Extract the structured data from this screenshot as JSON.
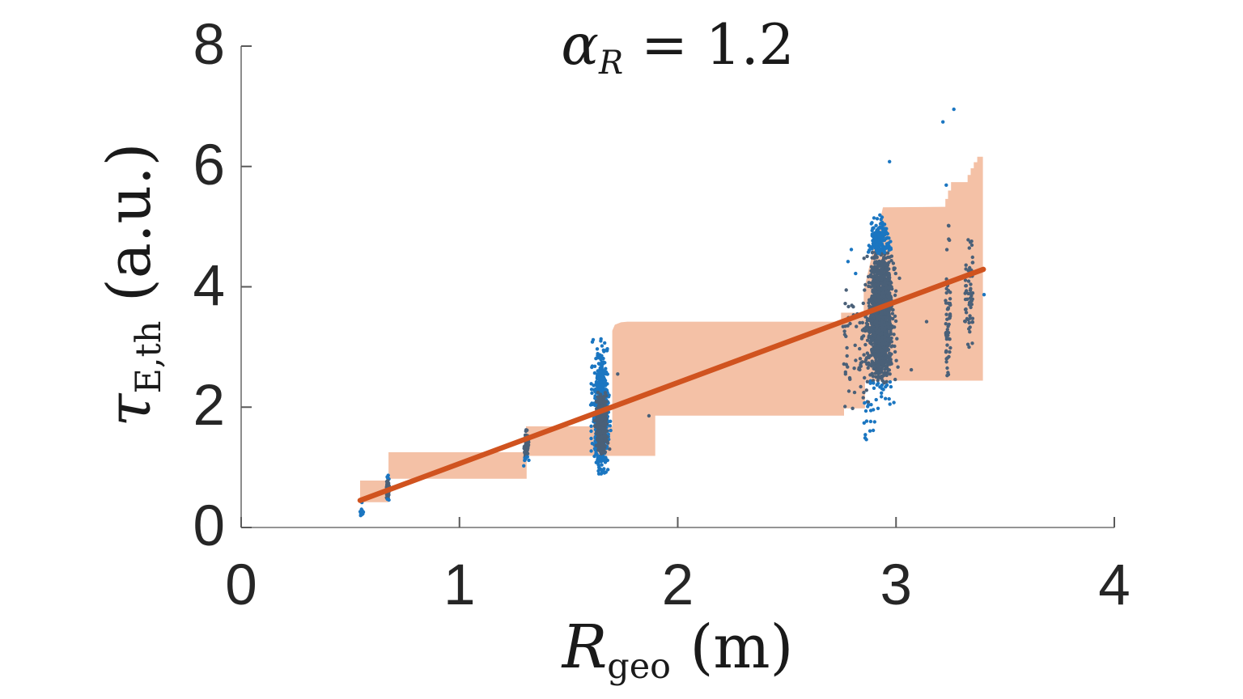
{
  "title": {
    "symbol": "α",
    "subscript": "R",
    "rest": " = 1.2"
  },
  "xlabel": {
    "symbol": "R",
    "subscript": "geo",
    "rest": " (m)"
  },
  "ylabel": {
    "symbol": "τ",
    "subscript": "E,th",
    "rest": " (a.u.)"
  },
  "axes": {
    "xticks": [
      "0",
      "1",
      "2",
      "3",
      "4"
    ],
    "yticks": [
      "0",
      "2",
      "4",
      "6",
      "8"
    ],
    "xlim": [
      0,
      4
    ],
    "ylim": [
      0,
      8
    ]
  },
  "palette": {
    "background": "#ffffff",
    "band": "#f4c1a6",
    "line": "#d0531f",
    "dot_bright": "#1b76c1",
    "dot_slate": "#4a6078",
    "axis_line": "#707070",
    "tick": "#5a5a5a",
    "text": "#262626"
  },
  "chart_data": {
    "type": "scatter",
    "title": "alpha_R = 1.2",
    "xlabel": "R_geo (m)",
    "ylabel": "tau_E,th (a.u.)",
    "xlim": [
      0,
      4
    ],
    "ylim": [
      0,
      8
    ],
    "grid": false,
    "legend": "none",
    "band": {
      "description": "salmon min-max step envelope",
      "upper": [
        [
          0.545,
          0.78
        ],
        [
          0.675,
          0.78
        ],
        [
          0.675,
          1.25
        ],
        [
          1.305,
          1.25
        ],
        [
          1.305,
          1.68
        ],
        [
          1.7,
          1.68
        ],
        [
          1.7,
          3.27
        ],
        [
          1.712,
          3.37
        ],
        [
          1.74,
          3.41
        ],
        [
          1.77,
          3.42
        ],
        [
          2.748,
          3.42
        ],
        [
          2.748,
          3.57
        ],
        [
          2.852,
          3.57
        ],
        [
          2.852,
          3.93
        ],
        [
          2.94,
          5.32
        ],
        [
          3.226,
          5.33
        ],
        [
          3.226,
          5.46
        ],
        [
          3.238,
          5.46
        ],
        [
          3.238,
          5.6
        ],
        [
          3.252,
          5.6
        ],
        [
          3.252,
          5.74
        ],
        [
          3.328,
          5.74
        ],
        [
          3.328,
          5.86
        ],
        [
          3.342,
          5.86
        ],
        [
          3.342,
          5.97
        ],
        [
          3.356,
          5.97
        ],
        [
          3.356,
          6.07
        ],
        [
          3.372,
          6.07
        ],
        [
          3.372,
          6.16
        ],
        [
          3.398,
          6.16
        ]
      ],
      "lower": [
        [
          0.545,
          0.42
        ],
        [
          0.675,
          0.42
        ],
        [
          0.675,
          0.81
        ],
        [
          1.308,
          0.81
        ],
        [
          1.308,
          1.19
        ],
        [
          1.897,
          1.19
        ],
        [
          1.897,
          1.86
        ],
        [
          2.762,
          1.86
        ],
        [
          2.762,
          1.98
        ],
        [
          2.858,
          1.98
        ],
        [
          2.858,
          2.44
        ],
        [
          3.398,
          2.44
        ]
      ]
    },
    "fit_line": {
      "x1": 0.545,
      "y1": 0.45,
      "x2": 3.4,
      "y2": 4.29,
      "width": 6.5
    },
    "dot_radius": 2.2,
    "clusters": [
      {
        "name": "cluster-0.55",
        "n": 13,
        "x": {
          "g": [
            0.551,
            0.005
          ],
          "clip": [
            0.54,
            0.564
          ]
        },
        "y": {
          "g": [
            0.27,
            0.06
          ],
          "clip": [
            0.18,
            0.37
          ]
        },
        "tone": "bright"
      },
      {
        "name": "cluster-0.67",
        "n": 55,
        "x": {
          "g": [
            0.672,
            0.003
          ],
          "clip": [
            0.664,
            0.681
          ]
        },
        "y": {
          "g": [
            0.65,
            0.12
          ],
          "clip": [
            0.45,
            0.88
          ]
        },
        "tone": "auto",
        "slate_y": [
          0.47,
          0.79
        ]
      },
      {
        "name": "cluster-1.30",
        "n": 90,
        "x": {
          "g": [
            1.306,
            0.005
          ],
          "clip": [
            1.293,
            1.319
          ]
        },
        "y": {
          "g": [
            1.38,
            0.17
          ],
          "clip": [
            1.02,
            1.76
          ]
        },
        "tone": "auto",
        "slate_y": [
          1.18,
          1.68
        ]
      },
      {
        "name": "cluster-1.65-fringe",
        "n": 620,
        "x": {
          "g": [
            1.649,
            0.016
          ],
          "clip": [
            1.592,
            1.708
          ]
        },
        "y": {
          "g": [
            1.9,
            0.5
          ],
          "clip": [
            0.89,
            3.17
          ]
        },
        "tone": "bright"
      },
      {
        "name": "cluster-1.65-core",
        "n": 560,
        "x": {
          "g": [
            1.652,
            0.011
          ],
          "clip": [
            1.61,
            1.695
          ]
        },
        "y": {
          "g": [
            1.73,
            0.27
          ],
          "clip": [
            1.22,
            2.26
          ]
        },
        "tone": "slate"
      },
      {
        "name": "cluster-2.9-fringe",
        "n": 430,
        "x": {
          "g": [
            2.928,
            0.03
          ],
          "clip": [
            2.828,
            3.022
          ]
        },
        "y": {
          "g": [
            3.55,
            0.68
          ],
          "clip": [
            1.98,
            4.78
          ]
        },
        "tone": "auto",
        "slate_y": [
          2.44,
          4.55
        ]
      },
      {
        "name": "cluster-2.9-core",
        "n": 1150,
        "x": {
          "g": [
            2.932,
            0.022
          ],
          "clip": [
            2.862,
            3.008
          ]
        },
        "y": {
          "g": [
            3.5,
            0.5
          ],
          "clip": [
            2.4,
            4.58
          ]
        },
        "tone": "slate"
      },
      {
        "name": "cluster-2.9-top",
        "n": 150,
        "x": {
          "g": [
            2.921,
            0.021
          ],
          "clip": [
            2.865,
            2.988
          ]
        },
        "y": {
          "g": [
            4.8,
            0.16
          ],
          "clip": [
            4.56,
            5.22
          ]
        },
        "tone": "bright"
      },
      {
        "name": "cluster-2.8-sparse",
        "n": 65,
        "x": {
          "u": [
            2.757,
            2.878
          ]
        },
        "y": {
          "g": [
            2.95,
            0.55
          ],
          "clip": [
            1.95,
            4.3
          ]
        },
        "tone": "auto",
        "slate_y": [
          0,
          4.0
        ]
      },
      {
        "name": "cluster-2.9-below",
        "n": 20,
        "x": {
          "u": [
            2.848,
            2.928
          ]
        },
        "y": {
          "u": [
            1.35,
            2.42
          ]
        },
        "tone": "bright"
      },
      {
        "name": "column-3.24",
        "n": 50,
        "x": {
          "u": [
            3.227,
            3.249
          ]
        },
        "y": {
          "g": [
            3.3,
            0.5
          ],
          "clip": [
            2.46,
            4.25
          ]
        },
        "tone": "slate"
      },
      {
        "name": "column-3.24-top",
        "n": 5,
        "x": {
          "u": [
            3.23,
            3.246
          ]
        },
        "y": {
          "u": [
            4.55,
            5.02
          ]
        },
        "tone": "slate"
      },
      {
        "name": "column-3.33",
        "n": 62,
        "x": {
          "u": [
            3.315,
            3.353
          ]
        },
        "y": {
          "g": [
            3.8,
            0.58
          ],
          "clip": [
            2.92,
            4.97
          ]
        },
        "tone": "slate"
      }
    ],
    "extra_points": {
      "bright": [
        [
          0.553,
          0.415
        ],
        [
          2.795,
          4.62
        ],
        [
          2.815,
          4.22
        ],
        [
          2.78,
          4.42
        ],
        [
          2.97,
          6.08
        ],
        [
          3.215,
          6.74
        ],
        [
          3.265,
          6.95
        ],
        [
          3.23,
          5.69
        ],
        [
          3.403,
          3.87
        ]
      ],
      "slate": [
        [
          1.725,
          2.55
        ],
        [
          1.868,
          1.855
        ],
        [
          3.07,
          2.62
        ],
        [
          3.14,
          3.42
        ]
      ]
    }
  }
}
